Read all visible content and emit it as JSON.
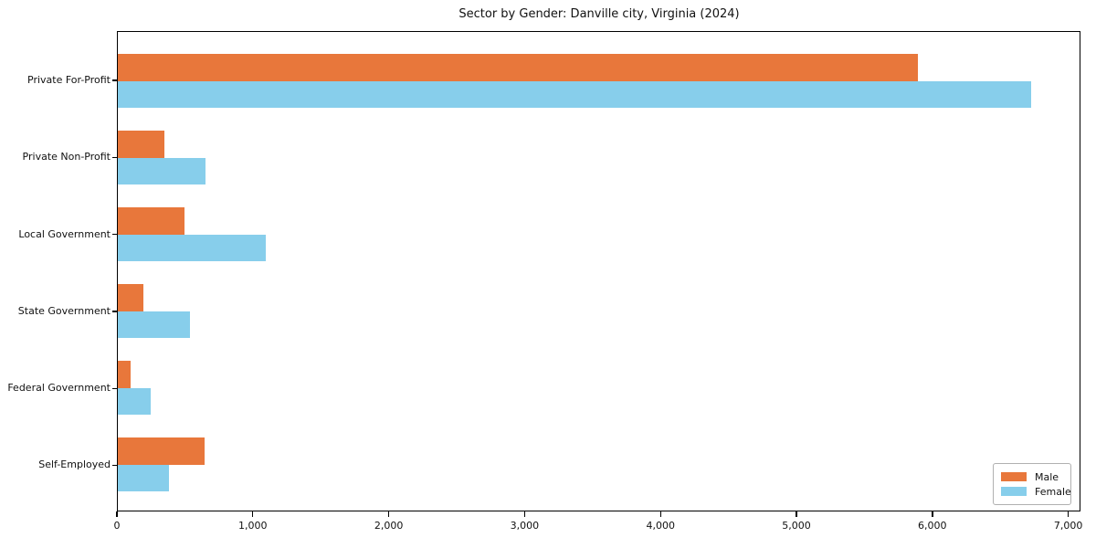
{
  "chart_data": {
    "type": "bar",
    "orientation": "horizontal",
    "title": "Sector by Gender: Danville city, Virginia (2024)",
    "categories": [
      "Private For-Profit",
      "Private Non-Profit",
      "Local Government",
      "State Government",
      "Federal Government",
      "Self-Employed"
    ],
    "series": [
      {
        "name": "Male",
        "color": "#e8773b",
        "values": [
          5900,
          345,
          490,
          190,
          95,
          640
        ]
      },
      {
        "name": "Female",
        "color": "#87ceeb",
        "values": [
          6730,
          645,
          1090,
          530,
          240,
          380
        ]
      }
    ],
    "xlabel": "",
    "ylabel": "",
    "xlim": [
      0,
      7090
    ],
    "xticks": [
      0,
      1000,
      2000,
      3000,
      4000,
      5000,
      6000,
      7000
    ],
    "xtick_labels": [
      "0",
      "1,000",
      "2,000",
      "3,000",
      "4,000",
      "5,000",
      "6,000",
      "7,000"
    ],
    "grid": false,
    "legend_position": "lower right",
    "frame_color": "#000000",
    "background_color": "#ffffff"
  }
}
